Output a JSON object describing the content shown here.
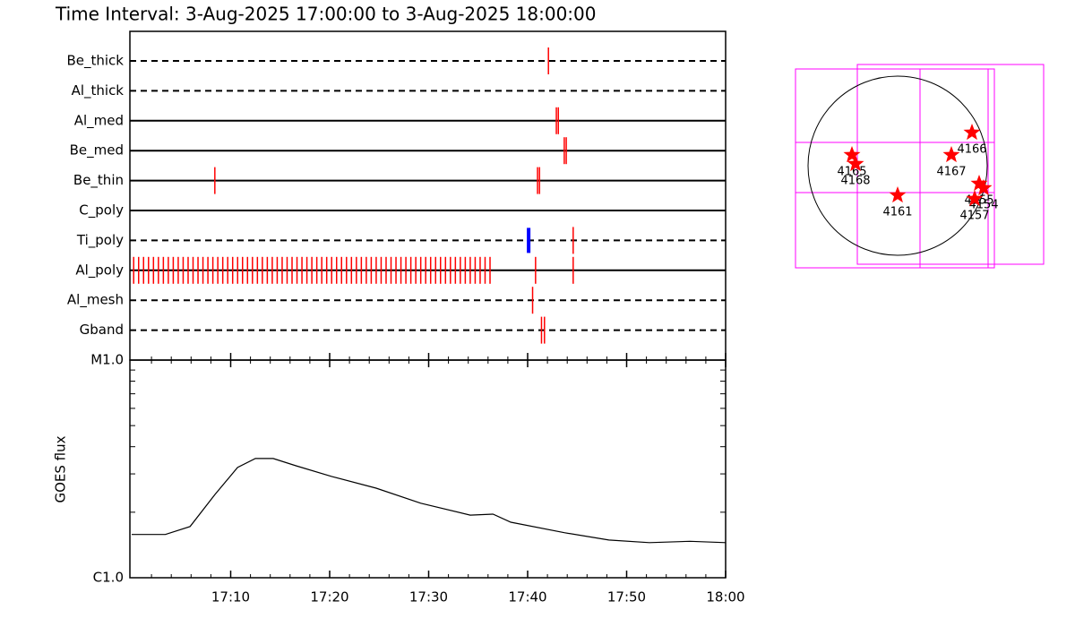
{
  "chart_data": [
    {
      "type": "timeline",
      "title": "Time Interval:  3-Aug-2025 17:00:00 to  3-Aug-2025 18:00:00",
      "xlim": [
        0,
        60
      ],
      "color": "#ff0000",
      "rows": [
        {
          "name": "Be_thick",
          "style": "dashed",
          "times": [
            42.1
          ]
        },
        {
          "name": "Al_thick",
          "style": "dashed",
          "times": []
        },
        {
          "name": "Al_med",
          "style": "solid",
          "times": [
            42.9,
            43.1
          ]
        },
        {
          "name": "Be_med",
          "style": "solid",
          "times": [
            43.7,
            43.9
          ]
        },
        {
          "name": "Be_thin",
          "style": "solid",
          "times": [
            8.4,
            41.0,
            41.2
          ]
        },
        {
          "name": "C_poly",
          "style": "solid",
          "times": []
        },
        {
          "name": "Ti_poly",
          "style": "dashed",
          "times": [
            44.6
          ],
          "marked_times": [
            40.1
          ],
          "marked_color": "#0000ff"
        },
        {
          "name": "Al_poly",
          "style": "solid",
          "times": [
            0.2,
            0.7,
            1.2,
            1.7,
            2.2,
            2.7,
            3.2,
            3.7,
            4.2,
            4.7,
            5.2,
            5.7,
            6.2,
            6.7,
            7.2,
            7.7,
            8.2,
            8.7,
            9.2,
            9.7,
            10.2,
            10.7,
            11.2,
            11.7,
            12.2,
            12.7,
            13.2,
            13.7,
            14.2,
            14.7,
            15.2,
            15.7,
            16.2,
            16.7,
            17.2,
            17.7,
            18.2,
            18.7,
            19.2,
            19.7,
            20.2,
            20.7,
            21.2,
            21.7,
            22.2,
            22.7,
            23.2,
            23.7,
            24.2,
            24.7,
            25.2,
            25.7,
            26.2,
            26.7,
            27.2,
            27.7,
            28.2,
            28.7,
            29.2,
            29.7,
            30.2,
            30.7,
            31.2,
            31.7,
            32.2,
            32.7,
            33.2,
            33.7,
            34.2,
            34.7,
            35.2,
            35.7,
            36.2,
            40.8,
            44.6
          ]
        },
        {
          "name": "Al_mesh",
          "style": "dashed",
          "times": [
            40.5
          ]
        },
        {
          "name": "Gband",
          "style": "dashed",
          "times": [
            41.4,
            41.7
          ]
        }
      ]
    },
    {
      "type": "line",
      "y_label": "GOES flux",
      "log_scale": true,
      "xlim": [
        0,
        60
      ],
      "xticks": [
        {
          "value": 10,
          "label": "17:10"
        },
        {
          "value": 20,
          "label": "17:20"
        },
        {
          "value": 30,
          "label": "17:30"
        },
        {
          "value": 40,
          "label": "17:40"
        },
        {
          "value": 50,
          "label": "17:50"
        },
        {
          "value": 60,
          "label": "18:00"
        }
      ],
      "minor_xticks": [
        2,
        4,
        6,
        8,
        12,
        14,
        16,
        18,
        22,
        24,
        26,
        28,
        32,
        34,
        36,
        38,
        42,
        44,
        46,
        48,
        52,
        54,
        56,
        58
      ],
      "ylim": [
        1e-06,
        1e-05
      ],
      "yticks": [
        {
          "value": 1e-06,
          "label": "C1.0"
        },
        {
          "value": 1e-05,
          "label": "M1.0"
        }
      ],
      "minor_yticks": [
        2e-06,
        3e-06,
        4e-06,
        5e-06,
        6e-06,
        7e-06,
        8e-06,
        9e-06
      ],
      "x": [
        0,
        3.4,
        5.9,
        8.4,
        10.7,
        12.5,
        14.3,
        16.6,
        20.2,
        24.7,
        29.2,
        34.2,
        36.5,
        38.3,
        43.7,
        48.2,
        52.3,
        56.4,
        60
      ],
      "values": [
        1.58e-06,
        1.58e-06,
        1.72e-06,
        2.41e-06,
        3.21e-06,
        3.53e-06,
        3.53e-06,
        3.27e-06,
        2.92e-06,
        2.58e-06,
        2.2e-06,
        1.94e-06,
        1.96e-06,
        1.8e-06,
        1.61e-06,
        1.49e-06,
        1.45e-06,
        1.47e-06,
        1.45e-06
      ],
      "color": "#000000"
    },
    {
      "type": "map",
      "color": "#ff0000",
      "points": [
        {
          "label": "4165",
          "x": -0.51,
          "y": 0.12
        },
        {
          "label": "4168",
          "x": -0.47,
          "y": 0.02
        },
        {
          "label": "4161",
          "x": 0.0,
          "y": -0.33
        },
        {
          "label": "4167",
          "x": 0.6,
          "y": 0.12
        },
        {
          "label": "4166",
          "x": 0.83,
          "y": 0.37
        },
        {
          "label": "4155",
          "x": 0.91,
          "y": -0.2
        },
        {
          "label": "4154",
          "x": 0.96,
          "y": -0.25
        },
        {
          "label": "4157",
          "x": 0.86,
          "y": -0.37
        }
      ]
    }
  ]
}
